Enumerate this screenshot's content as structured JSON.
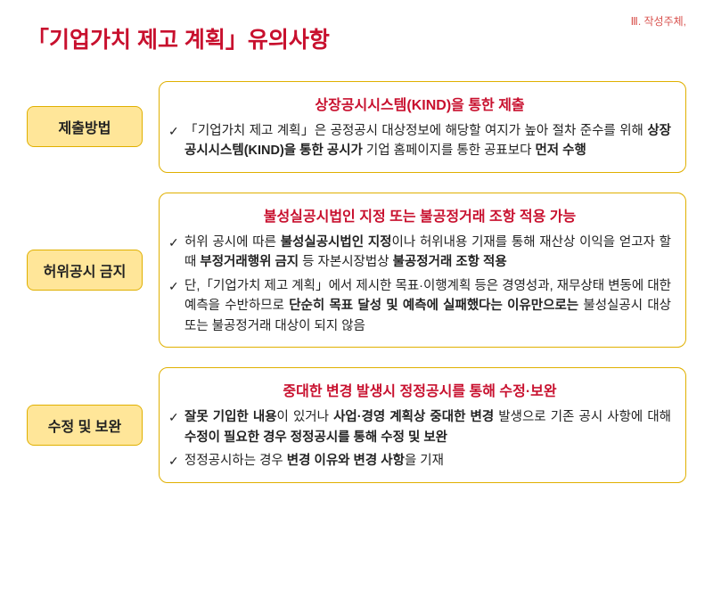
{
  "topRight": "Ⅲ. 작성주체,",
  "mainTitle": "「기업가치 제고 계획」유의사항",
  "sections": [
    {
      "label": "제출방법",
      "heading": "상장공시시스템(KIND)을 통한 제출",
      "items": [
        {
          "segments": [
            {
              "t": "「기업가치 제고 계획」은 공정공시 대상정보에 해당할 여지가 높아 절차 준수를 위해 ",
              "b": false
            },
            {
              "t": "상장공시시스템(KIND)을 통한 공시가",
              "b": true
            },
            {
              "t": " 기업 홈페이지를 통한 공표보다 ",
              "b": false
            },
            {
              "t": "먼저 수행",
              "b": true
            }
          ]
        }
      ]
    },
    {
      "label": "허위공시 금지",
      "heading": "불성실공시법인 지정 또는 불공정거래 조항 적용 가능",
      "items": [
        {
          "segments": [
            {
              "t": "허위 공시에 따른 ",
              "b": false
            },
            {
              "t": "불성실공시법인 지정",
              "b": true
            },
            {
              "t": "이나 허위내용 기재를 통해 재산상 이익을 얻고자 할 때 ",
              "b": false
            },
            {
              "t": "부정거래행위 금지",
              "b": true
            },
            {
              "t": " 등 자본시장법상 ",
              "b": false
            },
            {
              "t": "불공정거래 조항 적용",
              "b": true
            }
          ]
        },
        {
          "segments": [
            {
              "t": "단,「기업가치 제고 계획」에서 제시한 목표·이행계획 등은 경영성과, 재무상태 변동에 대한 예측을 수반하므로 ",
              "b": false
            },
            {
              "t": "단순히 목표 달성 및 예측에 실패했다는 이유만으로는",
              "b": true
            },
            {
              "t": " 불성실공시 대상 또는 불공정거래 대상이 되지 않음",
              "b": false
            }
          ]
        }
      ]
    },
    {
      "label": "수정 및 보완",
      "heading": "중대한 변경 발생시 정정공시를 통해 수정·보완",
      "items": [
        {
          "segments": [
            {
              "t": "잘못 기입한 내용",
              "b": true
            },
            {
              "t": "이 있거나 ",
              "b": false
            },
            {
              "t": "사업·경영 계획상 중대한 변경",
              "b": true
            },
            {
              "t": " 발생으로 기존 공시 사항에 대해 ",
              "b": false
            },
            {
              "t": "수정이 필요한 경우 정정공시를 통해 수정 및 보완",
              "b": true
            }
          ]
        },
        {
          "segments": [
            {
              "t": "정정공시하는 경우 ",
              "b": false
            },
            {
              "t": "변경 이유와 변경 사항",
              "b": true
            },
            {
              "t": "을 기재",
              "b": false
            }
          ]
        }
      ]
    }
  ]
}
